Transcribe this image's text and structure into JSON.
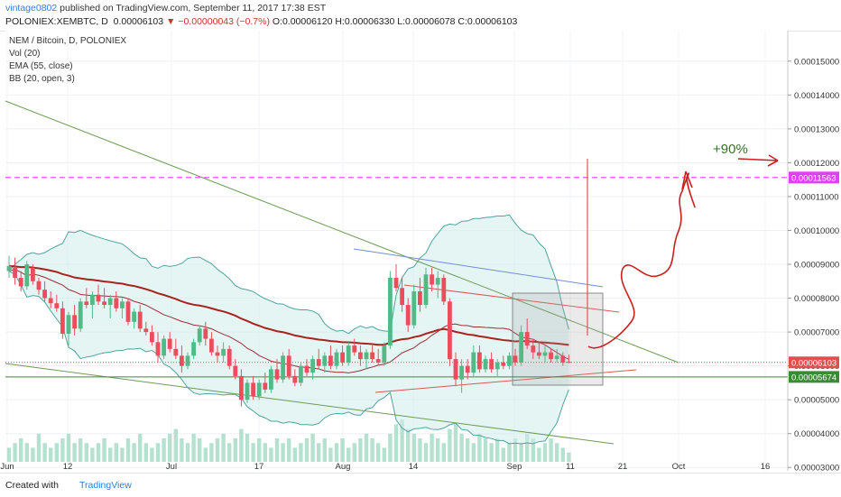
{
  "header": {
    "user": "vintage0802",
    "published": "published on TradingView.com, September 11, 2017 17:38 EST",
    "symbol": "POLONIEX:XEMBTC, D",
    "price": "0.00006103",
    "change": "−0.00000043 (−0.7%)",
    "ohlc": "O:0.00006120 H:0.00006330 L:0.00006078 C:0.00006103"
  },
  "legend": {
    "title": "NEM / Bitcoin, D, POLONIEX",
    "vol": "Vol (20)",
    "ema": "EMA (55, close)",
    "bb": "BB (20, open, 3)"
  },
  "footer": {
    "created": "Created with",
    "brand": "TradingView"
  },
  "colors": {
    "up": "#53b987",
    "down": "#eb4d5c",
    "bb_band": "#4fa39e",
    "bb_basis": "#9c2f36",
    "ema": "#a8231d",
    "volume": "#a3d9c4",
    "target": "#e040fb",
    "current_price": "#e0504f",
    "support": "#3c8b34"
  },
  "chart_data": {
    "type": "candlestick",
    "title": "NEM / Bitcoin, D, POLONIEX",
    "ylim": [
      2.9e-05,
      0.000159
    ],
    "y_ticks": [
      "0.00015000",
      "0.00014000",
      "0.00013000",
      "0.00012000",
      "0.00011000",
      "0.00010000",
      "0.00009000",
      "0.00008000",
      "0.00007000",
      "0.00006000",
      "0.00005000",
      "0.00004000",
      "0.00003000"
    ],
    "x_ticks": [
      "Jun",
      "12",
      "Jul",
      "17",
      "Aug",
      "14",
      "Sep",
      "11",
      "21",
      "Oct",
      "16"
    ],
    "price_labels": {
      "target": "0.00011563",
      "current": "0.00006103",
      "support": "0.00005674"
    },
    "annotation": "+90%",
    "target_level": 0.00011563,
    "current_level": 6.103e-05,
    "support_level": 5.674e-05,
    "candles": [
      {
        "o": 8.8e-05,
        "h": 9.25e-05,
        "l": 8.6e-05,
        "c": 8.95e-05
      },
      {
        "o": 8.9e-05,
        "h": 9.2e-05,
        "l": 8.4e-05,
        "c": 8.6e-05
      },
      {
        "o": 8.6e-05,
        "h": 8.8e-05,
        "l": 8.2e-05,
        "c": 8.35e-05
      },
      {
        "o": 8.35e-05,
        "h": 9.1e-05,
        "l": 8.25e-05,
        "c": 9e-05
      },
      {
        "o": 8.9e-05,
        "h": 9e-05,
        "l": 8.4e-05,
        "c": 8.5e-05
      },
      {
        "o": 8.5e-05,
        "h": 8.6e-05,
        "l": 8.1e-05,
        "c": 8.25e-05
      },
      {
        "o": 8.25e-05,
        "h": 8.5e-05,
        "l": 7.9e-05,
        "c": 8e-05
      },
      {
        "o": 8e-05,
        "h": 8.2e-05,
        "l": 7.7e-05,
        "c": 7.85e-05
      },
      {
        "o": 7.85e-05,
        "h": 8.1e-05,
        "l": 7.6e-05,
        "c": 7.7e-05
      },
      {
        "o": 7.7e-05,
        "h": 7.9e-05,
        "l": 6.8e-05,
        "c": 6.95e-05
      },
      {
        "o": 6.95e-05,
        "h": 7.6e-05,
        "l": 6.6e-05,
        "c": 7.5e-05
      },
      {
        "o": 7.5e-05,
        "h": 7.8e-05,
        "l": 6.9e-05,
        "c": 7.1e-05
      },
      {
        "o": 7.1e-05,
        "h": 8e-05,
        "l": 7e-05,
        "c": 7.9e-05
      },
      {
        "o": 7.9e-05,
        "h": 8.3e-05,
        "l": 7.7e-05,
        "c": 7.8e-05
      },
      {
        "o": 7.8e-05,
        "h": 8.2e-05,
        "l": 7.4e-05,
        "c": 8.1e-05
      },
      {
        "o": 8.1e-05,
        "h": 8.4e-05,
        "l": 7.8e-05,
        "c": 7.9e-05
      },
      {
        "o": 7.9e-05,
        "h": 8.3e-05,
        "l": 7.7e-05,
        "c": 7.8e-05
      },
      {
        "o": 7.8e-05,
        "h": 8.1e-05,
        "l": 7.4e-05,
        "c": 8e-05
      },
      {
        "o": 8e-05,
        "h": 8.2e-05,
        "l": 7.6e-05,
        "c": 7.7e-05
      },
      {
        "o": 7.7e-05,
        "h": 8e-05,
        "l": 7.4e-05,
        "c": 7.9e-05
      },
      {
        "o": 7.9e-05,
        "h": 8e-05,
        "l": 7.2e-05,
        "c": 7.3e-05
      },
      {
        "o": 7.3e-05,
        "h": 7.7e-05,
        "l": 7.1e-05,
        "c": 7.6e-05
      },
      {
        "o": 7.6e-05,
        "h": 7.8e-05,
        "l": 7e-05,
        "c": 7.1e-05
      },
      {
        "o": 7.1e-05,
        "h": 7.3e-05,
        "l": 6.9e-05,
        "c": 7e-05
      },
      {
        "o": 7e-05,
        "h": 7.2e-05,
        "l": 6.6e-05,
        "c": 6.7e-05
      },
      {
        "o": 6.7e-05,
        "h": 7e-05,
        "l": 6.1e-05,
        "c": 6.3e-05
      },
      {
        "o": 6.3e-05,
        "h": 6.9e-05,
        "l": 6.2e-05,
        "c": 6.8e-05
      },
      {
        "o": 6.8e-05,
        "h": 7e-05,
        "l": 6.4e-05,
        "c": 6.5e-05
      },
      {
        "o": 6.5e-05,
        "h": 6.8e-05,
        "l": 6.2e-05,
        "c": 6.3e-05
      },
      {
        "o": 6.3e-05,
        "h": 6.6e-05,
        "l": 5.8e-05,
        "c": 6e-05
      },
      {
        "o": 6e-05,
        "h": 6.4e-05,
        "l": 5.9e-05,
        "c": 6.3e-05
      },
      {
        "o": 6.3e-05,
        "h": 6.8e-05,
        "l": 6.2e-05,
        "c": 6.7e-05
      },
      {
        "o": 6.7e-05,
        "h": 7.2e-05,
        "l": 6.6e-05,
        "c": 7.1e-05
      },
      {
        "o": 7.1e-05,
        "h": 7.3e-05,
        "l": 6.6e-05,
        "c": 6.8e-05
      },
      {
        "o": 6.8e-05,
        "h": 7e-05,
        "l": 6.3e-05,
        "c": 6.4e-05
      },
      {
        "o": 6.4e-05,
        "h": 6.6e-05,
        "l": 6.1e-05,
        "c": 6.3e-05
      },
      {
        "o": 6.3e-05,
        "h": 6.7e-05,
        "l": 6.1e-05,
        "c": 6.5e-05
      },
      {
        "o": 6.5e-05,
        "h": 6.6e-05,
        "l": 5.9e-05,
        "c": 6e-05
      },
      {
        "o": 6e-05,
        "h": 6.2e-05,
        "l": 5.6e-05,
        "c": 5.7e-05
      },
      {
        "o": 5.7e-05,
        "h": 5.9e-05,
        "l": 4.8e-05,
        "c": 5e-05
      },
      {
        "o": 5e-05,
        "h": 5.6e-05,
        "l": 4.9e-05,
        "c": 5.5e-05
      },
      {
        "o": 5.5e-05,
        "h": 5.7e-05,
        "l": 5e-05,
        "c": 5.1e-05
      },
      {
        "o": 5.1e-05,
        "h": 5.6e-05,
        "l": 5e-05,
        "c": 5.5e-05
      },
      {
        "o": 5.5e-05,
        "h": 5.8e-05,
        "l": 5.2e-05,
        "c": 5.3e-05
      },
      {
        "o": 5.3e-05,
        "h": 6e-05,
        "l": 5.2e-05,
        "c": 5.9e-05
      },
      {
        "o": 5.9e-05,
        "h": 6.2e-05,
        "l": 5.5e-05,
        "c": 5.6e-05
      },
      {
        "o": 5.6e-05,
        "h": 6.4e-05,
        "l": 5.5e-05,
        "c": 6.3e-05
      },
      {
        "o": 6.3e-05,
        "h": 6.5e-05,
        "l": 5.6e-05,
        "c": 5.7e-05
      },
      {
        "o": 5.7e-05,
        "h": 5.9e-05,
        "l": 5.4e-05,
        "c": 5.5e-05
      },
      {
        "o": 5.5e-05,
        "h": 6.1e-05,
        "l": 5.4e-05,
        "c": 6e-05
      },
      {
        "o": 6e-05,
        "h": 6.2e-05,
        "l": 5.7e-05,
        "c": 5.8e-05
      },
      {
        "o": 5.8e-05,
        "h": 6.3e-05,
        "l": 5.6e-05,
        "c": 6.2e-05
      },
      {
        "o": 6.2e-05,
        "h": 6.5e-05,
        "l": 5.9e-05,
        "c": 6e-05
      },
      {
        "o": 6e-05,
        "h": 6.4e-05,
        "l": 5.8e-05,
        "c": 6.3e-05
      },
      {
        "o": 6.3e-05,
        "h": 6.6e-05,
        "l": 5.9e-05,
        "c": 6e-05
      },
      {
        "o": 6e-05,
        "h": 6.5e-05,
        "l": 5.9e-05,
        "c": 6.4e-05
      },
      {
        "o": 6.4e-05,
        "h": 6.6e-05,
        "l": 6e-05,
        "c": 6.1e-05
      },
      {
        "o": 6.1e-05,
        "h": 6.7e-05,
        "l": 6e-05,
        "c": 6.6e-05
      },
      {
        "o": 6.6e-05,
        "h": 6.8e-05,
        "l": 6.3e-05,
        "c": 6.4e-05
      },
      {
        "o": 6.4e-05,
        "h": 6.6e-05,
        "l": 6e-05,
        "c": 6.2e-05
      },
      {
        "o": 6.2e-05,
        "h": 6.5e-05,
        "l": 5.9e-05,
        "c": 6.4e-05
      },
      {
        "o": 6.4e-05,
        "h": 6.6e-05,
        "l": 6.1e-05,
        "c": 6.2e-05
      },
      {
        "o": 6.2e-05,
        "h": 6.5e-05,
        "l": 6e-05,
        "c": 6.1e-05
      },
      {
        "o": 6.1e-05,
        "h": 6.7e-05,
        "l": 6e-05,
        "c": 6.6e-05
      },
      {
        "o": 6.6e-05,
        "h": 8.8e-05,
        "l": 6.5e-05,
        "c": 8.6e-05
      },
      {
        "o": 8.6e-05,
        "h": 9e-05,
        "l": 8.2e-05,
        "c": 8.3e-05
      },
      {
        "o": 8.3e-05,
        "h": 8.6e-05,
        "l": 7.6e-05,
        "c": 7.8e-05
      },
      {
        "o": 7.8e-05,
        "h": 8e-05,
        "l": 7e-05,
        "c": 7.2e-05
      },
      {
        "o": 7.2e-05,
        "h": 8.4e-05,
        "l": 7.1e-05,
        "c": 8.2e-05
      },
      {
        "o": 8.2e-05,
        "h": 8.6e-05,
        "l": 7.6e-05,
        "c": 7.8e-05
      },
      {
        "o": 7.8e-05,
        "h": 8.9e-05,
        "l": 7.7e-05,
        "c": 8.7e-05
      },
      {
        "o": 8.7e-05,
        "h": 8.9e-05,
        "l": 8.2e-05,
        "c": 8.4e-05
      },
      {
        "o": 8.4e-05,
        "h": 8.8e-05,
        "l": 8e-05,
        "c": 8.6e-05
      },
      {
        "o": 8.6e-05,
        "h": 8.7e-05,
        "l": 7.8e-05,
        "c": 7.9e-05
      },
      {
        "o": 7.9e-05,
        "h": 8e-05,
        "l": 6e-05,
        "c": 6.2e-05
      },
      {
        "o": 6.2e-05,
        "h": 6.4e-05,
        "l": 5.4e-05,
        "c": 5.6e-05
      },
      {
        "o": 5.6e-05,
        "h": 6.2e-05,
        "l": 5.2e-05,
        "c": 6e-05
      },
      {
        "o": 6e-05,
        "h": 6.2e-05,
        "l": 5.6e-05,
        "c": 5.8e-05
      },
      {
        "o": 5.8e-05,
        "h": 6.6e-05,
        "l": 5.7e-05,
        "c": 6.4e-05
      },
      {
        "o": 6.4e-05,
        "h": 6.6e-05,
        "l": 5.8e-05,
        "c": 5.9e-05
      },
      {
        "o": 5.9e-05,
        "h": 6.3e-05,
        "l": 5.8e-05,
        "c": 6.2e-05
      },
      {
        "o": 6.2e-05,
        "h": 6.4e-05,
        "l": 5.8e-05,
        "c": 5.9e-05
      },
      {
        "o": 5.9e-05,
        "h": 6.2e-05,
        "l": 5.7e-05,
        "c": 6.1e-05
      },
      {
        "o": 6.1e-05,
        "h": 6.3e-05,
        "l": 5.9e-05,
        "c": 6e-05
      },
      {
        "o": 6e-05,
        "h": 6.4e-05,
        "l": 5.9e-05,
        "c": 6.3e-05
      },
      {
        "o": 6.3e-05,
        "h": 6.5e-05,
        "l": 6e-05,
        "c": 6.1e-05
      },
      {
        "o": 6.1e-05,
        "h": 7.2e-05,
        "l": 6e-05,
        "c": 7e-05
      },
      {
        "o": 7e-05,
        "h": 7.4e-05,
        "l": 6.5e-05,
        "c": 6.6e-05
      },
      {
        "o": 6.6e-05,
        "h": 6.8e-05,
        "l": 6.2e-05,
        "c": 6.4e-05
      },
      {
        "o": 6.4e-05,
        "h": 6.7e-05,
        "l": 6.2e-05,
        "c": 6.3e-05
      },
      {
        "o": 6.3e-05,
        "h": 6.6e-05,
        "l": 6.1e-05,
        "c": 6.4e-05
      },
      {
        "o": 6.4e-05,
        "h": 6.5e-05,
        "l": 6.1e-05,
        "c": 6.2e-05
      },
      {
        "o": 6.2e-05,
        "h": 6.5e-05,
        "l": 6.1e-05,
        "c": 6.3e-05
      },
      {
        "o": 6.3e-05,
        "h": 6.4e-05,
        "l": 6e-05,
        "c": 6.1e-05
      },
      {
        "o": 6.12e-05,
        "h": 6.33e-05,
        "l": 6.08e-05,
        "c": 6.1e-05
      }
    ],
    "volumes": [
      3,
      4,
      5,
      4,
      3,
      6,
      4,
      3,
      4,
      5,
      6,
      4,
      5,
      4,
      3,
      4,
      5,
      3,
      4,
      3,
      5,
      4,
      6,
      4,
      3,
      4,
      5,
      6,
      7,
      5,
      4,
      6,
      5,
      3,
      4,
      5,
      6,
      4,
      5,
      7,
      6,
      4,
      5,
      4,
      3,
      5,
      4,
      5,
      3,
      4,
      5,
      6,
      4,
      5,
      3,
      4,
      5,
      3,
      4,
      5,
      6,
      5,
      4,
      3,
      6,
      8,
      9,
      7,
      6,
      5,
      4,
      6,
      5,
      4,
      7,
      8,
      6,
      5,
      4,
      6,
      5,
      4,
      5,
      3,
      4,
      5,
      4,
      6,
      5,
      3,
      4,
      5,
      4,
      3,
      2
    ]
  }
}
